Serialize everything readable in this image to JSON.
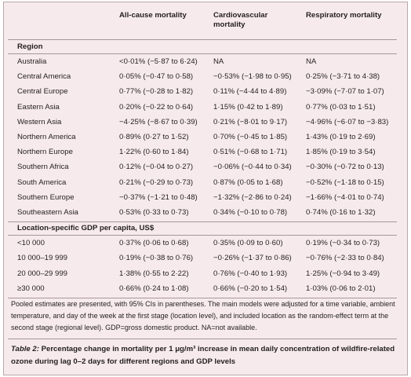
{
  "header": {
    "columns": [
      "All-cause mortality",
      "Cardiovascular mortality",
      "Respiratory mortality"
    ]
  },
  "sections": [
    {
      "title": "Region",
      "rows": [
        [
          "Australia",
          "<0·01% (−5·87 to 6·24)",
          "NA",
          "NA"
        ],
        [
          "Central America",
          "0·05% (−0·47 to 0·58)",
          "−0·53% (−1·98 to 0·95)",
          "0·25% (−3·71 to 4·38)"
        ],
        [
          "Central Europe",
          "0·77% (−0·28 to 1·82)",
          "0·11% (−4·44 to 4·89)",
          "−3·09% (−7·07 to 1·07)"
        ],
        [
          "Eastern Asia",
          "0·20% (−0·22 to 0·64)",
          "1·15% (0·42 to 1·89)",
          "0·77% (0·03 to 1·51)"
        ],
        [
          "Western Asia",
          "−4·25% (−8·67 to 0·39)",
          "0·21% (−8·01 to 9·17)",
          "−4·96% (−6·07 to −3·83)"
        ],
        [
          "Northern America",
          "0·89% (0·27 to 1·52)",
          "0·70% (−0·45 to 1·85)",
          "1·43% (0·19 to 2·69)"
        ],
        [
          "Northern Europe",
          "1·22% (0·60 to 1·84)",
          "0·51% (−0·68 to 1·71)",
          "1·85% (0·19 to 3·54)"
        ],
        [
          "Southern Africa",
          "0·12% (−0·04 to 0·27)",
          "−0·06% (−0·44 to 0·34)",
          "−0·30% (−0·72 to 0·13)"
        ],
        [
          "South America",
          "0·21% (−0·29 to 0·73)",
          "0·87% (0·05 to 1·68)",
          "−0·52% (−1·18 to 0·15)"
        ],
        [
          "Southern Europe",
          "−0·37% (−1·21 to 0·48)",
          "−1·32% (−2·86 to 0·24)",
          "−1·66% (−4·01 to 0·74)"
        ],
        [
          "Southeastern Asia",
          "0·53% (0·33 to 0·73)",
          "0·34% (−0·10 to 0·78)",
          "0·74% (0·16 to 1·32)"
        ]
      ]
    },
    {
      "title": "Location-specific GDP per capita, US$",
      "rows": [
        [
          "<10 000",
          "0·37% (0·06 to 0·68)",
          "0·35% (0·09 to 0·60)",
          "0·19% (−0·34 to 0·73)"
        ],
        [
          "10 000–19 999",
          "0·19% (−0·38 to 0·76)",
          "−0·26% (−1·37 to 0·86)",
          "−0·76% (−2·33 to 0·84)"
        ],
        [
          "20 000–29 999",
          "1·38% (0·55 to 2·22)",
          "0·76% (−0·40 to 1·93)",
          "1·25% (−0·94 to 3·49)"
        ],
        [
          "≥30 000",
          "0·66% (0·24 to 1·08)",
          "0·66% (−0·20 to 1·54)",
          "1·03% (0·06 to 2·01)"
        ]
      ]
    }
  ],
  "footnote": "Pooled estimates are presented, with 95% CIs in parentheses. The main models were adjusted for a time variable, ambient temperature, and day of the week at the first stage (location level), and included location as the random-effect term at the second stage (regional level). GDP=gross domestic product. NA=not available.",
  "caption": {
    "label": "Table 2:",
    "text": "Percentage change in mortality per 1 μg/m³ increase in mean daily concentration of wildfire-related ozone during lag 0–2 days for different regions and GDP levels"
  }
}
